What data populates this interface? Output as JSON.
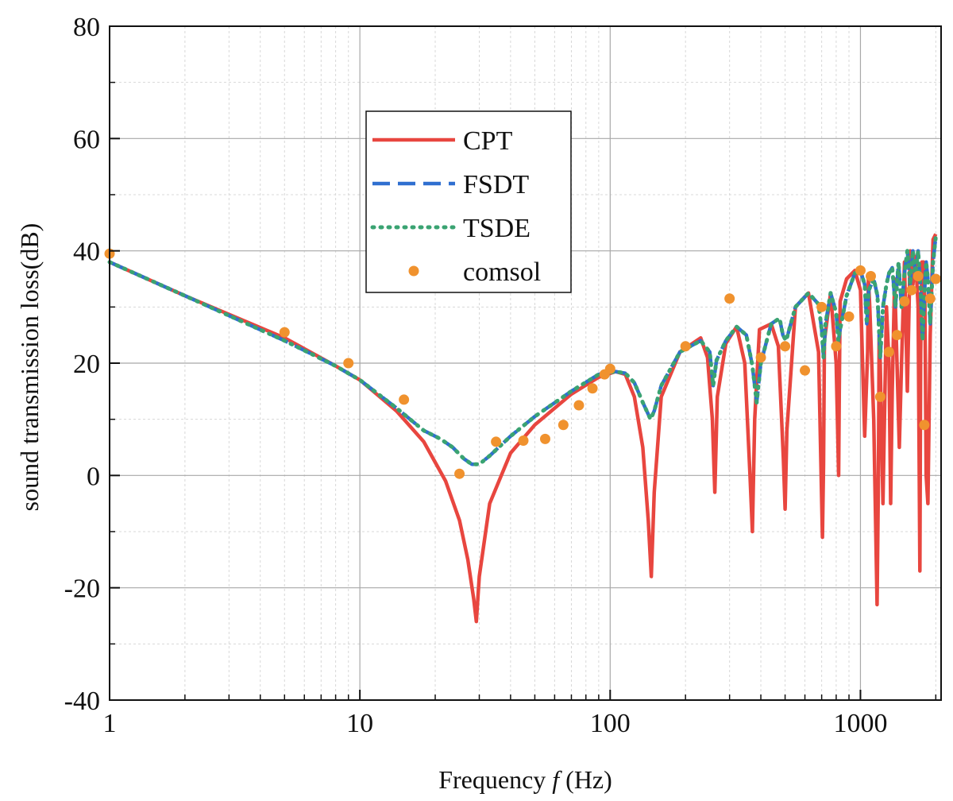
{
  "chart_data": {
    "type": "line",
    "title": "",
    "xlabel_prefix": "Frequency ",
    "xlabel_var": "f",
    "xlabel_suffix": " (Hz)",
    "ylabel": "sound transmission loss(dB)",
    "xscale": "log",
    "xlim": [
      1,
      2100
    ],
    "ylim": [
      -40,
      80
    ],
    "x_ticks": [
      1,
      10,
      100,
      1000
    ],
    "x_tick_labels": [
      "1",
      "10",
      "100",
      "1000"
    ],
    "y_ticks": [
      -40,
      -20,
      0,
      20,
      40,
      60,
      80
    ],
    "y_tick_labels": [
      "-40",
      "-20",
      "0",
      "20",
      "40",
      "60",
      "80"
    ],
    "grid": true,
    "legend_position": "upper-center",
    "series": [
      {
        "name": "CPT",
        "style": "solid",
        "color": "#e8463f",
        "x": [
          1,
          2,
          5,
          8,
          10,
          14,
          18,
          22,
          25,
          27,
          28.5,
          29.2,
          30,
          33,
          40,
          50,
          70,
          90,
          105,
          115,
          125,
          135,
          142,
          146,
          150,
          160,
          190,
          230,
          245,
          256,
          262,
          268,
          290,
          320,
          345,
          362,
          370,
          378,
          395,
          440,
          470,
          492,
          500,
          508,
          550,
          620,
          680,
          705,
          712,
          718,
          760,
          800,
          818,
          823,
          830,
          880,
          950,
          1000,
          1040,
          1068,
          1075,
          1090,
          1130,
          1165,
          1180,
          1188,
          1200,
          1230,
          1270,
          1300,
          1320,
          1340,
          1370,
          1400,
          1430,
          1460,
          1500,
          1540,
          1580,
          1620,
          1660,
          1700,
          1728,
          1740,
          1760,
          1790,
          1810,
          1830,
          1860,
          1900,
          1950,
          2000
        ],
        "y": [
          38,
          32,
          24.5,
          19.5,
          17,
          11.5,
          6,
          -1,
          -8,
          -15,
          -22,
          -26,
          -18,
          -5,
          4,
          9,
          14.5,
          17.5,
          18.5,
          18,
          14,
          5,
          -8,
          -18,
          -3,
          14,
          22,
          24.5,
          21,
          10,
          -3,
          14,
          23.5,
          26.5,
          20,
          0,
          -10,
          10,
          26,
          27,
          23,
          3,
          -6,
          8,
          30,
          32.5,
          22,
          -11,
          2,
          24,
          32.5,
          20,
          0,
          15,
          31,
          35,
          36.5,
          33,
          7,
          22,
          35,
          30,
          10,
          -23,
          0,
          25,
          20,
          -5,
          30,
          20,
          -5,
          15,
          35,
          20,
          5,
          20,
          38,
          15,
          40,
          34,
          39,
          30,
          -17,
          22,
          38,
          38,
          30,
          0,
          -5,
          25,
          42,
          43
        ]
      },
      {
        "name": "FSDT",
        "style": "dashed",
        "color": "#2f6fd0",
        "x": [
          1,
          2,
          5,
          8,
          10,
          14,
          18,
          21,
          23.5,
          26,
          28,
          30,
          33,
          40,
          50,
          70,
          90,
          105,
          115,
          125,
          135,
          145,
          150,
          160,
          190,
          230,
          250,
          258,
          266,
          290,
          320,
          350,
          370,
          385,
          400,
          440,
          475,
          490,
          505,
          550,
          620,
          680,
          700,
          712,
          725,
          760,
          800,
          816,
          830,
          880,
          950,
          1000,
          1040,
          1060,
          1080,
          1130,
          1170,
          1200,
          1230,
          1270,
          1300,
          1340,
          1380,
          1420,
          1460,
          1500,
          1540,
          1580,
          1620,
          1660,
          1700,
          1740,
          1770,
          1800,
          1830,
          1860,
          1900,
          1950,
          2000
        ],
        "y": [
          38,
          32,
          24,
          19.5,
          17,
          12,
          8,
          6.5,
          5,
          3,
          2,
          2,
          3.5,
          7,
          10.5,
          15,
          18,
          18.5,
          18.2,
          16.5,
          13,
          10,
          11.5,
          16,
          22,
          24,
          22,
          16,
          20.5,
          24,
          26.5,
          25,
          19.5,
          13,
          20,
          27,
          28,
          25,
          24,
          30,
          32.5,
          30.5,
          26,
          21,
          27,
          32.5,
          29,
          24,
          26,
          32,
          36,
          36.5,
          34,
          27,
          33,
          35,
          32,
          21,
          30,
          34,
          36,
          37,
          30,
          38,
          30,
          36,
          40,
          34,
          40,
          36,
          40,
          33,
          24,
          32,
          38,
          35,
          27,
          38,
          42.5
        ]
      },
      {
        "name": "TSDE",
        "style": "dotted",
        "color": "#3aa372",
        "x": [
          1,
          2,
          5,
          8,
          10,
          14,
          18,
          21,
          23.5,
          26,
          28,
          30,
          33,
          40,
          50,
          70,
          90,
          105,
          115,
          125,
          135,
          145,
          150,
          160,
          190,
          230,
          250,
          258,
          266,
          290,
          320,
          350,
          370,
          385,
          400,
          440,
          475,
          490,
          505,
          550,
          620,
          680,
          700,
          712,
          725,
          760,
          800,
          816,
          830,
          880,
          950,
          1000,
          1040,
          1060,
          1080,
          1130,
          1170,
          1200,
          1230,
          1270,
          1300,
          1340,
          1380,
          1420,
          1460,
          1500,
          1540,
          1580,
          1620,
          1660,
          1700,
          1740,
          1770,
          1800,
          1830,
          1860,
          1900,
          1950,
          2000
        ],
        "y": [
          38,
          32,
          24,
          19.5,
          17,
          12,
          8,
          6.5,
          5,
          3,
          2,
          2,
          3.5,
          7,
          10.5,
          15,
          18,
          18.5,
          18.2,
          16.5,
          13,
          10,
          11.5,
          16,
          22,
          24,
          22,
          16,
          20.5,
          24,
          26.5,
          25,
          19.5,
          13,
          20,
          27,
          28,
          25,
          24,
          30,
          32.5,
          30.5,
          26,
          21,
          27,
          32.5,
          29,
          24,
          26,
          32,
          36,
          36.5,
          34,
          27,
          33,
          35,
          32,
          21,
          30,
          34,
          36,
          37,
          30,
          38,
          30,
          36,
          40,
          34,
          40,
          36,
          40,
          33,
          24,
          32,
          38,
          35,
          27,
          38,
          42.5
        ]
      },
      {
        "name": "comsol",
        "style": "markers",
        "color": "#f0922e",
        "x": [
          1,
          5,
          9,
          15,
          25,
          35,
          45,
          55,
          65,
          75,
          85,
          95,
          100,
          200,
          300,
          400,
          500,
          600,
          700,
          800,
          900,
          1000,
          1100,
          1200,
          1300,
          1400,
          1500,
          1600,
          1700,
          1800,
          1900,
          2000
        ],
        "y": [
          39.5,
          25.5,
          20,
          13.5,
          0.3,
          6,
          6.2,
          6.5,
          9,
          12.5,
          15.5,
          18,
          19,
          23,
          31.5,
          21,
          23,
          18.7,
          30,
          23,
          28.3,
          36.5,
          35.5,
          14,
          22,
          25,
          31,
          33,
          35.5,
          9,
          31.5,
          35
        ]
      }
    ]
  }
}
